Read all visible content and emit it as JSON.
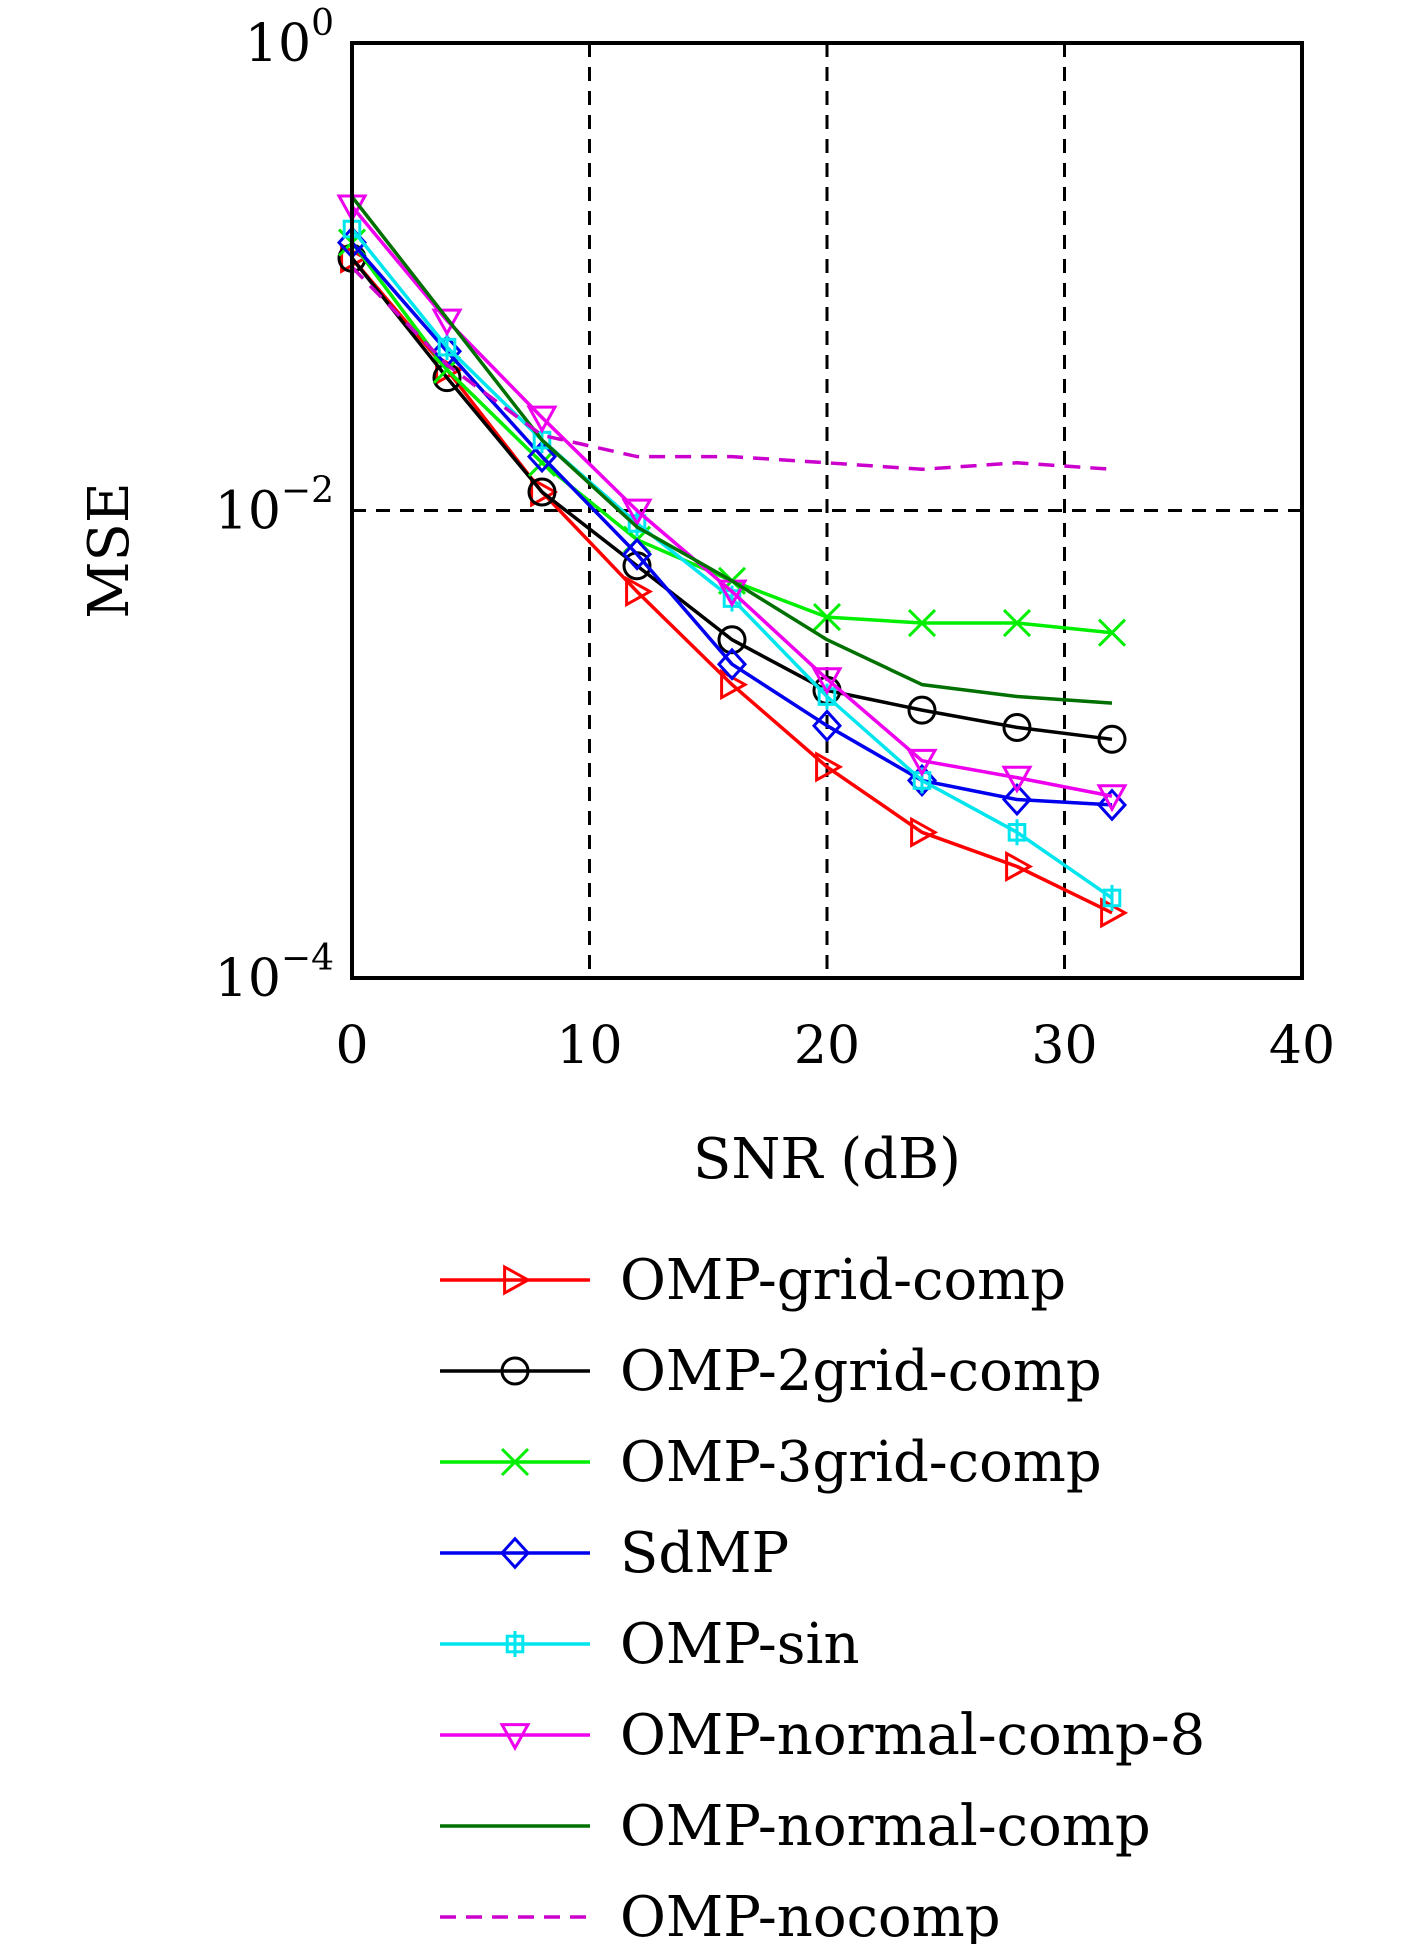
{
  "chart_data": {
    "type": "line",
    "title": "",
    "xlabel": "SNR (dB)",
    "ylabel": "MSE",
    "xlim": [
      0,
      40
    ],
    "ylim": [
      0.0001,
      1
    ],
    "yscale": "log",
    "x_ticks": [
      0,
      10,
      20,
      30,
      40
    ],
    "y_ticks": [
      {
        "value": 1,
        "base": "10",
        "exp": "0"
      },
      {
        "value": 0.01,
        "base": "10",
        "exp": "−2"
      },
      {
        "value": 0.0001,
        "base": "10",
        "exp": "−4"
      }
    ],
    "grid": {
      "x_dashed_at": [
        10,
        20,
        30
      ],
      "y_dashed_at": [
        0.01
      ]
    },
    "legend_position": "below-plot",
    "series": [
      {
        "name": "OMP-grid-comp",
        "color": "#ff0000",
        "marker": "triangle-right",
        "dash": "solid",
        "x": [
          0,
          4,
          8,
          12,
          16,
          20,
          24,
          28,
          32
        ],
        "y": [
          0.12,
          0.04,
          0.012,
          0.0045,
          0.0018,
          0.0008,
          0.00042,
          0.0003,
          0.00019
        ]
      },
      {
        "name": "OMP-2grid-comp",
        "color": "#000000",
        "marker": "circle",
        "dash": "solid",
        "x": [
          0,
          4,
          8,
          12,
          16,
          20,
          24,
          28,
          32
        ],
        "y": [
          0.12,
          0.037,
          0.012,
          0.0058,
          0.0028,
          0.0017,
          0.0014,
          0.00118,
          0.00105
        ]
      },
      {
        "name": "OMP-3grid-comp",
        "color": "#00ee00",
        "marker": "x",
        "dash": "solid",
        "x": [
          0,
          4,
          8,
          12,
          16,
          20,
          24,
          28,
          32
        ],
        "y": [
          0.14,
          0.04,
          0.016,
          0.0075,
          0.005,
          0.0035,
          0.0033,
          0.0033,
          0.003
        ]
      },
      {
        "name": "SdMP",
        "color": "#0000ee",
        "marker": "diamond",
        "dash": "solid",
        "x": [
          0,
          4,
          8,
          12,
          16,
          20,
          24,
          28,
          32
        ],
        "y": [
          0.14,
          0.048,
          0.017,
          0.0065,
          0.0022,
          0.0012,
          0.0007,
          0.00058,
          0.00055
        ]
      },
      {
        "name": "OMP-sin",
        "color": "#00e5ee",
        "marker": "square-cross",
        "dash": "solid",
        "x": [
          0,
          4,
          8,
          12,
          16,
          20,
          24,
          28,
          32
        ],
        "y": [
          0.16,
          0.05,
          0.02,
          0.0088,
          0.0042,
          0.0016,
          0.0007,
          0.00042,
          0.00022
        ]
      },
      {
        "name": "OMP-normal-comp-8",
        "color": "#ee00ee",
        "marker": "triangle-down",
        "dash": "solid",
        "x": [
          0,
          4,
          8,
          12,
          16,
          20,
          24,
          28,
          32
        ],
        "y": [
          0.2,
          0.065,
          0.025,
          0.01,
          0.0045,
          0.0019,
          0.00085,
          0.00072,
          0.0006
        ]
      },
      {
        "name": "OMP-normal-comp",
        "color": "#007000",
        "marker": "none",
        "dash": "solid",
        "x": [
          0,
          8,
          12,
          16,
          20,
          24,
          28,
          32
        ],
        "y": [
          0.22,
          0.02,
          0.0085,
          0.005,
          0.0028,
          0.0018,
          0.0016,
          0.0015
        ]
      },
      {
        "name": "OMP-nocomp",
        "color": "#cc00cc",
        "marker": "none",
        "dash": "dashed",
        "x": [
          0,
          4,
          8,
          12,
          16,
          20,
          24,
          28,
          32
        ],
        "y": [
          0.11,
          0.042,
          0.021,
          0.017,
          0.017,
          0.016,
          0.015,
          0.016,
          0.015
        ]
      }
    ]
  }
}
